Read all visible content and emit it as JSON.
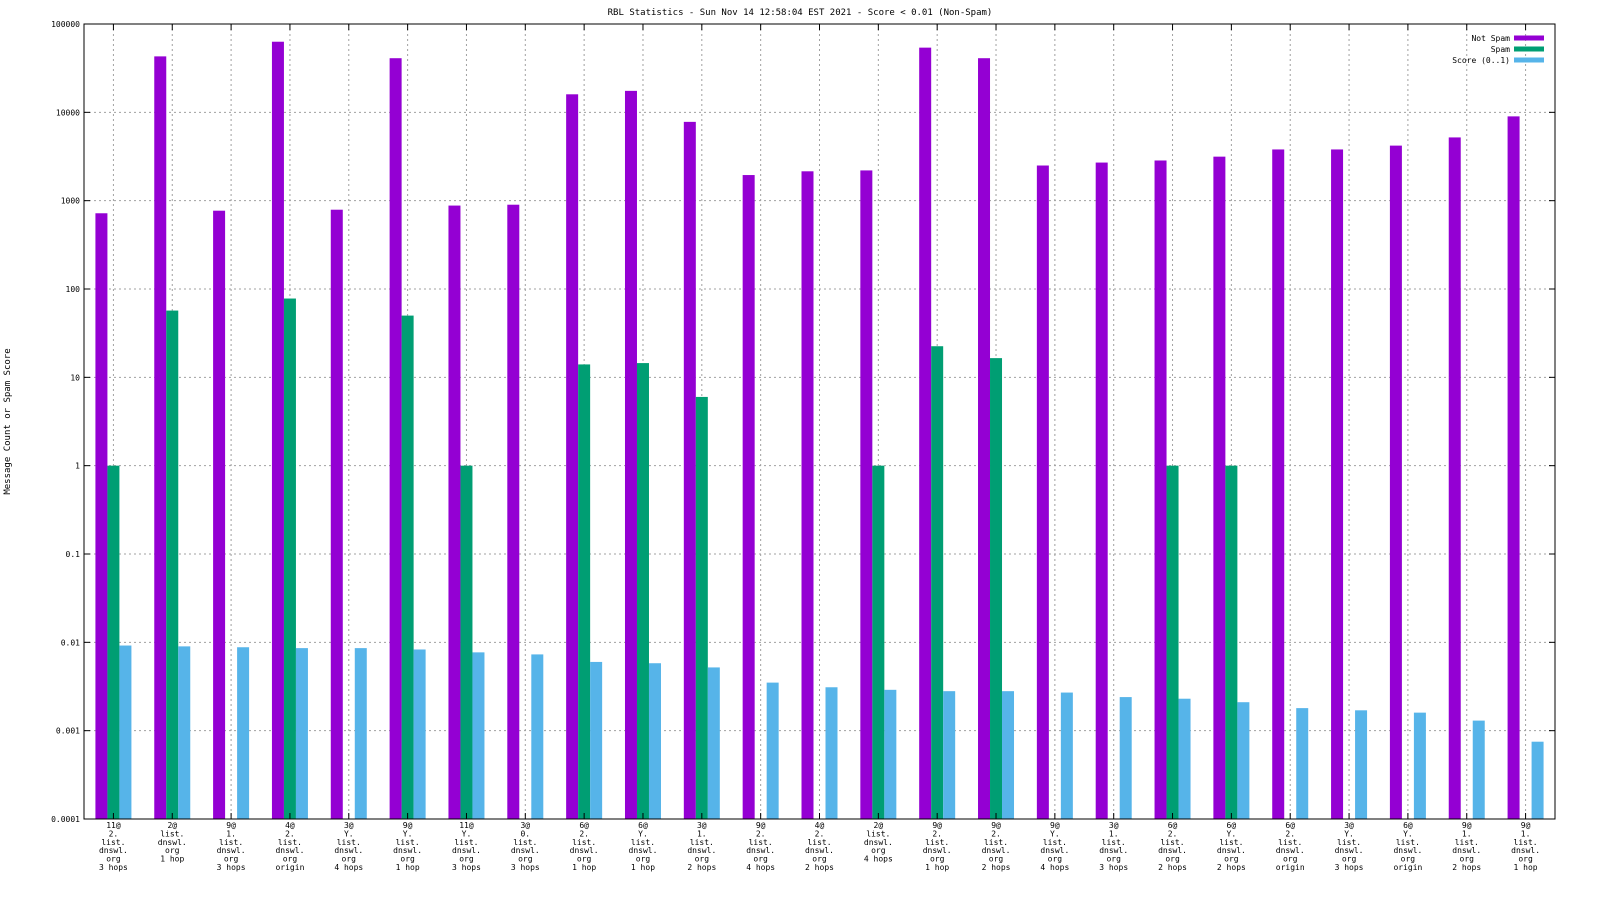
{
  "chart_data": {
    "type": "bar",
    "title": "RBL Statistics - Sun Nov 14 12:58:04 EST 2021 - Score < 0.01 (Non-Spam)",
    "xlabel": "",
    "ylabel": "Message Count or Spam Score",
    "yscale": "log",
    "ylim": [
      0.0001,
      100000
    ],
    "yticks": [
      "0.0001",
      "0.001",
      "0.01",
      "0.1",
      "1",
      "10",
      "100",
      "1000",
      "10000",
      "100000"
    ],
    "grid": true,
    "legend_position": "top-right",
    "categories": [
      [
        "11@",
        "2.",
        "list.",
        "dnswl.",
        "org",
        "3 hops"
      ],
      [
        "2@",
        "list.",
        "dnswl.",
        "org",
        "1 hop"
      ],
      [
        "9@",
        "1.",
        "list.",
        "dnswl.",
        "org",
        "3 hops"
      ],
      [
        "4@",
        "2.",
        "list.",
        "dnswl.",
        "org",
        "origin"
      ],
      [
        "3@",
        "Y.",
        "list.",
        "dnswl.",
        "org",
        "4 hops"
      ],
      [
        "9@",
        "Y.",
        "list.",
        "dnswl.",
        "org",
        "1 hop"
      ],
      [
        "11@",
        "Y.",
        "list.",
        "dnswl.",
        "org",
        "3 hops"
      ],
      [
        "3@",
        "0.",
        "list.",
        "dnswl.",
        "org",
        "3 hops"
      ],
      [
        "6@",
        "2.",
        "list.",
        "dnswl.",
        "org",
        "1 hop"
      ],
      [
        "6@",
        "Y.",
        "list.",
        "dnswl.",
        "org",
        "1 hop"
      ],
      [
        "3@",
        "1.",
        "list.",
        "dnswl.",
        "org",
        "2 hops"
      ],
      [
        "9@",
        "2.",
        "list.",
        "dnswl.",
        "org",
        "4 hops"
      ],
      [
        "4@",
        "2.",
        "list.",
        "dnswl.",
        "org",
        "2 hops"
      ],
      [
        "2@",
        "list.",
        "dnswl.",
        "org",
        "4 hops"
      ],
      [
        "9@",
        "2.",
        "list.",
        "dnswl.",
        "org",
        "1 hop"
      ],
      [
        "9@",
        "2.",
        "list.",
        "dnswl.",
        "org",
        "2 hops"
      ],
      [
        "9@",
        "Y.",
        "list.",
        "dnswl.",
        "org",
        "4 hops"
      ],
      [
        "3@",
        "1.",
        "list.",
        "dnswl.",
        "org",
        "3 hops"
      ],
      [
        "6@",
        "2.",
        "list.",
        "dnswl.",
        "org",
        "2 hops"
      ],
      [
        "6@",
        "Y.",
        "list.",
        "dnswl.",
        "org",
        "2 hops"
      ],
      [
        "6@",
        "2.",
        "list.",
        "dnswl.",
        "org",
        "origin"
      ],
      [
        "3@",
        "Y.",
        "list.",
        "dnswl.",
        "org",
        "3 hops"
      ],
      [
        "6@",
        "Y.",
        "list.",
        "dnswl.",
        "org",
        "origin"
      ],
      [
        "9@",
        "1.",
        "list.",
        "dnswl.",
        "org",
        "2 hops"
      ],
      [
        "9@",
        "1.",
        "list.",
        "dnswl.",
        "org",
        "1 hop"
      ]
    ],
    "series": [
      {
        "name": "Not Spam",
        "color": "#9400d3",
        "values": [
          720,
          43000,
          770,
          63000,
          790,
          41000,
          880,
          900,
          16000,
          17500,
          7800,
          1950,
          2150,
          2200,
          54000,
          41000,
          2500,
          2700,
          2850,
          3150,
          3800,
          3800,
          4200,
          5200,
          9000
        ]
      },
      {
        "name": "Spam",
        "color": "#009e73",
        "values": [
          1,
          57,
          0,
          78,
          0,
          50,
          1,
          0,
          14,
          14.5,
          6,
          0,
          0,
          1,
          22.5,
          16.5,
          0,
          0,
          1,
          1,
          0,
          0,
          0,
          0,
          0
        ]
      },
      {
        "name": "Score (0..1)",
        "color": "#56b4e9",
        "values": [
          0.0092,
          0.009,
          0.0088,
          0.0086,
          0.0086,
          0.0083,
          0.0077,
          0.0073,
          0.006,
          0.0058,
          0.0052,
          0.0035,
          0.0031,
          0.0029,
          0.0028,
          0.0028,
          0.0027,
          0.0024,
          0.0023,
          0.0021,
          0.0018,
          0.0017,
          0.0016,
          0.0013,
          0.00075
        ]
      }
    ]
  }
}
